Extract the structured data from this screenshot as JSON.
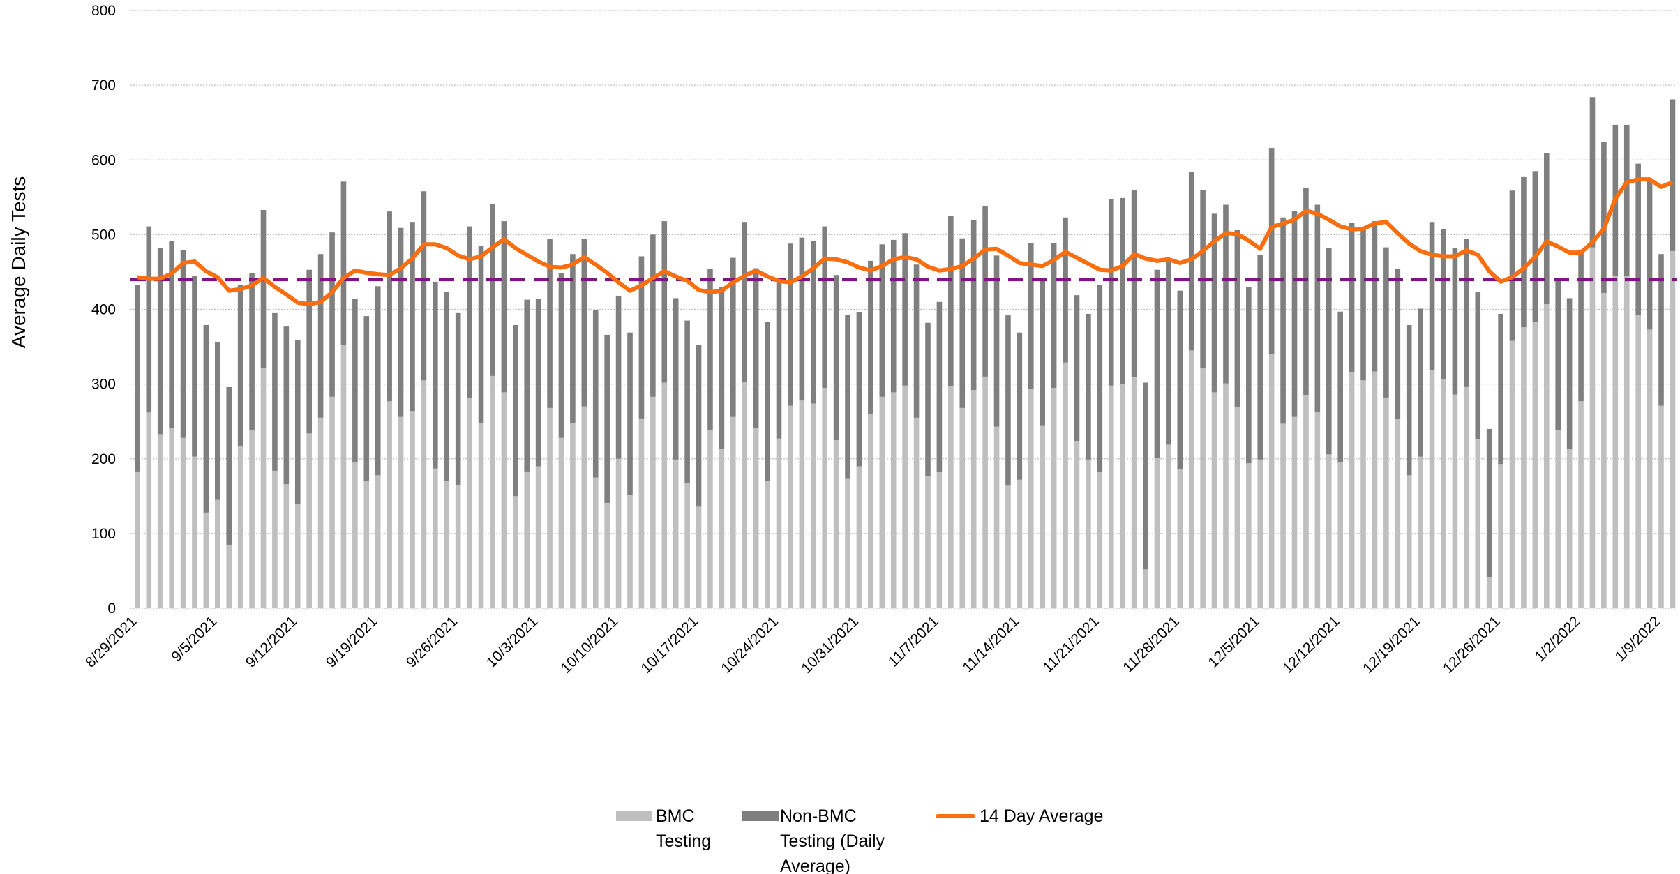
{
  "chart_data": {
    "type": "bar",
    "stacked": true,
    "y_label": "Average Daily Tests",
    "categories": [
      "8/29/2021",
      null,
      null,
      null,
      null,
      null,
      null,
      "9/5/2021",
      null,
      null,
      null,
      null,
      null,
      null,
      "9/12/2021",
      null,
      null,
      null,
      null,
      null,
      null,
      "9/19/2021",
      null,
      null,
      null,
      null,
      null,
      null,
      "9/26/2021",
      null,
      null,
      null,
      null,
      null,
      null,
      "10/3/2021",
      null,
      null,
      null,
      null,
      null,
      null,
      "10/10/2021",
      null,
      null,
      null,
      null,
      null,
      null,
      "10/17/2021",
      null,
      null,
      null,
      null,
      null,
      null,
      "10/24/2021",
      null,
      null,
      null,
      null,
      null,
      null,
      "10/31/2021",
      null,
      null,
      null,
      null,
      null,
      null,
      "11/7/2021",
      null,
      null,
      null,
      null,
      null,
      null,
      "11/14/2021",
      null,
      null,
      null,
      null,
      null,
      null,
      "11/21/2021",
      null,
      null,
      null,
      null,
      null,
      null,
      "11/28/2021",
      null,
      null,
      null,
      null,
      null,
      null,
      "12/5/2021",
      null,
      null,
      null,
      null,
      null,
      null,
      "12/12/2021",
      null,
      null,
      null,
      null,
      null,
      null,
      "12/19/2021",
      null,
      null,
      null,
      null,
      null,
      null,
      "12/26/2021",
      null,
      null,
      null,
      null,
      null,
      null,
      "1/2/2022",
      null,
      null,
      null,
      null,
      null,
      null,
      "1/9/2022",
      null
    ],
    "series": [
      {
        "name": "BMC Testing",
        "color": "#bfbfbf",
        "values": [
          183,
          262,
          233,
          241,
          228,
          203,
          128,
          145,
          85,
          217,
          239,
          322,
          184,
          166,
          139,
          234,
          255,
          283,
          352,
          195,
          170,
          178,
          277,
          256,
          264,
          305,
          187,
          170,
          165,
          281,
          248,
          311,
          289,
          150,
          183,
          190,
          268,
          228,
          248,
          270,
          175,
          141,
          200,
          152,
          254,
          283,
          302,
          199,
          168,
          136,
          239,
          213,
          256,
          303,
          241,
          170,
          227,
          271,
          278,
          274,
          295,
          225,
          174,
          190,
          260,
          283,
          289,
          298,
          255,
          177,
          182,
          297,
          268,
          292,
          310,
          243,
          164,
          172,
          294,
          244,
          295,
          329,
          224,
          199,
          182,
          298,
          300,
          309,
          52,
          201,
          219,
          186,
          345,
          321,
          289,
          301,
          269,
          194,
          199,
          340,
          247,
          256,
          285,
          263,
          206,
          196,
          316,
          305,
          317,
          282,
          253,
          178,
          203,
          319,
          307,
          286,
          296,
          226,
          42,
          193,
          358,
          376,
          383,
          407,
          238,
          213,
          277,
          483,
          422,
          445,
          445,
          392,
          373,
          271,
          478
        ]
      },
      {
        "name": "Non-BMC Testing (Daily Average)",
        "color": "#7f7f7f",
        "values": [
          250,
          249,
          249,
          250,
          251,
          242,
          251,
          211,
          211,
          216,
          210,
          211,
          211,
          211,
          220,
          219,
          219,
          220,
          219,
          219,
          221,
          253,
          254,
          253,
          253,
          253,
          250,
          253,
          230,
          230,
          237,
          230,
          229,
          229,
          230,
          224,
          226,
          221,
          226,
          224,
          224,
          225,
          218,
          217,
          217,
          217,
          216,
          216,
          217,
          216,
          215,
          217,
          213,
          214,
          214,
          213,
          214,
          217,
          218,
          218,
          216,
          221,
          219,
          206,
          205,
          204,
          204,
          204,
          205,
          205,
          228,
          228,
          227,
          228,
          228,
          229,
          228,
          197,
          195,
          196,
          194,
          194,
          195,
          195,
          251,
          250,
          249,
          251,
          250,
          252,
          249,
          239,
          239,
          239,
          239,
          239,
          237,
          236,
          274,
          276,
          276,
          276,
          277,
          277,
          276,
          201,
          200,
          205,
          201,
          201,
          201,
          201,
          198,
          198,
          200,
          196,
          198,
          197,
          198,
          201,
          201,
          201,
          202,
          202,
          202,
          202,
          203,
          201,
          202,
          202,
          202,
          203,
          201,
          203,
          203
        ]
      },
      {
        "name": "14 Day Average",
        "type": "line",
        "color": "#fa6e0f",
        "values": [
          443,
          441,
          441,
          448,
          462,
          464,
          451,
          443,
          425,
          427,
          432,
          442,
          430,
          420,
          409,
          407,
          410,
          423,
          442,
          452,
          449,
          447,
          446,
          455,
          468,
          487,
          487,
          482,
          472,
          467,
          471,
          483,
          494,
          482,
          473,
          464,
          457,
          456,
          460,
          470,
          460,
          449,
          436,
          425,
          432,
          442,
          451,
          444,
          438,
          426,
          423,
          425,
          436,
          445,
          452,
          444,
          438,
          436,
          444,
          455,
          468,
          467,
          463,
          456,
          452,
          458,
          467,
          470,
          467,
          457,
          452,
          454,
          458,
          468,
          480,
          481,
          472,
          462,
          460,
          458,
          466,
          477,
          469,
          461,
          453,
          452,
          458,
          474,
          468,
          465,
          467,
          462,
          467,
          478,
          491,
          502,
          501,
          492,
          481,
          510,
          515,
          520,
          532,
          528,
          520,
          511,
          507,
          508,
          515,
          517,
          502,
          488,
          478,
          473,
          471,
          471,
          479,
          473,
          451,
          437,
          443,
          455,
          470,
          491,
          484,
          476,
          476,
          490,
          508,
          548,
          570,
          574,
          574,
          564,
          570
        ]
      }
    ],
    "reference_line": {
      "value": 440,
      "color": "#7b1682"
    },
    "ylim": [
      0,
      800
    ],
    "yticks": [
      0,
      100,
      200,
      300,
      400,
      500,
      600,
      700,
      800
    ],
    "grid": true
  }
}
